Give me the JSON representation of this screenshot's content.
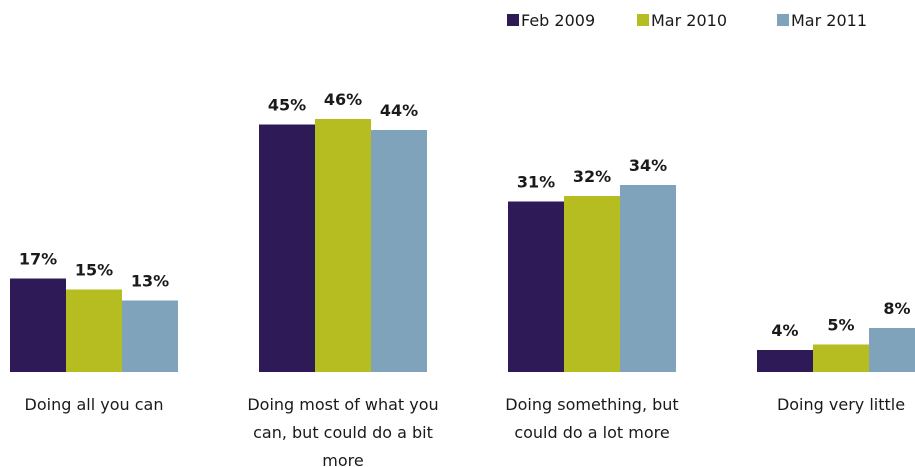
{
  "chart_data": {
    "type": "bar",
    "categories": [
      [
        "Doing all you can"
      ],
      [
        "Doing most of what you",
        "can, but could do a bit",
        "more"
      ],
      [
        "Doing something, but",
        "could do a lot more"
      ],
      [
        "Doing very little"
      ]
    ],
    "series": [
      {
        "name": "Feb 2009",
        "color": "#2e1a57",
        "values": [
          17,
          45,
          31,
          4
        ]
      },
      {
        "name": "Mar 2010",
        "color": "#b5bd20",
        "values": [
          15,
          46,
          32,
          5
        ]
      },
      {
        "name": "Mar 2011",
        "color": "#7fa3bb",
        "values": [
          13,
          44,
          34,
          8
        ]
      }
    ],
    "value_suffix": "%",
    "ylim": [
      0,
      50
    ],
    "legend": "top-right",
    "grid": false
  }
}
